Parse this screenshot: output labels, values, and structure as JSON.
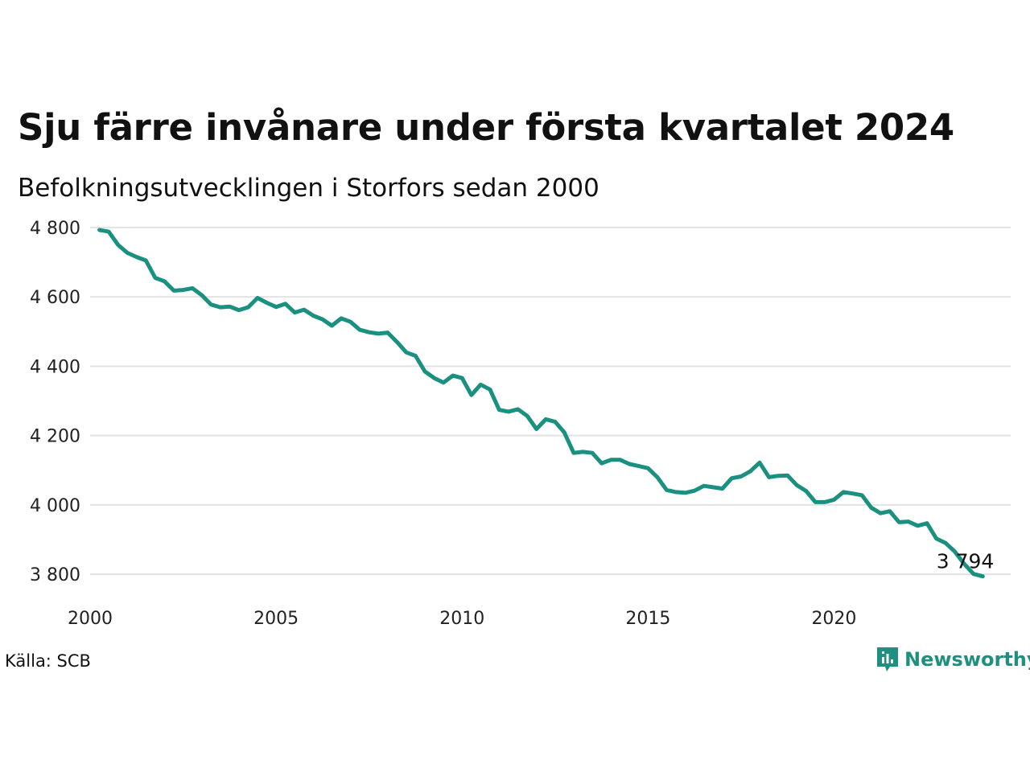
{
  "title": "Sju färre invånare under första kvartalet 2024",
  "subtitle": "Befolkningsutvecklingen i Storfors sedan 2000",
  "source": "Källa: SCB",
  "brand": {
    "name": "Newsworthy",
    "icon": "newsworthy-logo-icon",
    "color": "#1f8f7f"
  },
  "chart_data": {
    "type": "line",
    "title": "Sju färre invånare under första kvartalet 2024",
    "subtitle": "Befolkningsutvecklingen i Storfors sedan 2000",
    "xlabel": "",
    "ylabel": "",
    "xlim": [
      2000,
      2024.75
    ],
    "ylim": [
      3740,
      4830
    ],
    "grid": true,
    "line_color": "#1a9080",
    "x_ticks": [
      2000,
      2005,
      2010,
      2015,
      2020
    ],
    "x_tick_labels": [
      "2000",
      "2005",
      "2010",
      "2015",
      "2020"
    ],
    "y_ticks": [
      3800,
      4000,
      4200,
      4400,
      4600,
      4800
    ],
    "y_tick_labels": [
      "3 800",
      "4 000",
      "4 200",
      "4 400",
      "4 600",
      "4 800"
    ],
    "end_label": "3 794",
    "x": [
      2000.25,
      2000.5,
      2000.75,
      2001,
      2001.25,
      2001.5,
      2001.75,
      2002,
      2002.25,
      2002.5,
      2002.75,
      2003,
      2003.25,
      2003.5,
      2003.75,
      2004,
      2004.25,
      2004.5,
      2004.75,
      2005,
      2005.25,
      2005.5,
      2005.75,
      2006,
      2006.25,
      2006.5,
      2006.75,
      2007,
      2007.25,
      2007.5,
      2007.75,
      2008,
      2008.25,
      2008.5,
      2008.75,
      2009,
      2009.25,
      2009.5,
      2009.75,
      2010,
      2010.25,
      2010.5,
      2010.75,
      2011,
      2011.25,
      2011.5,
      2011.75,
      2012,
      2012.25,
      2012.5,
      2012.75,
      2013,
      2013.25,
      2013.5,
      2013.75,
      2014,
      2014.25,
      2014.5,
      2014.75,
      2015,
      2015.25,
      2015.5,
      2015.75,
      2016,
      2016.25,
      2016.5,
      2016.75,
      2017,
      2017.25,
      2017.5,
      2017.75,
      2018,
      2018.25,
      2018.5,
      2018.75,
      2019,
      2019.25,
      2019.5,
      2019.75,
      2020,
      2020.25,
      2020.5,
      2020.75,
      2021,
      2021.25,
      2021.5,
      2021.75,
      2022,
      2022.25,
      2022.5,
      2022.75,
      2023,
      2023.25,
      2023.5,
      2023.75,
      2024
    ],
    "series": [
      {
        "values": [
          4793,
          4788,
          4750,
          4727,
          4715,
          4705,
          4655,
          4645,
          4618,
          4620,
          4625,
          4605,
          4578,
          4570,
          4572,
          4562,
          4570,
          4597,
          4583,
          4571,
          4580,
          4555,
          4563,
          4546,
          4535,
          4517,
          4538,
          4528,
          4505,
          4498,
          4494,
          4497,
          4470,
          4440,
          4430,
          4385,
          4366,
          4353,
          4373,
          4366,
          4317,
          4347,
          4333,
          4274,
          4269,
          4276,
          4257,
          4219,
          4247,
          4240,
          4209,
          4150,
          4153,
          4150,
          4120,
          4130,
          4130,
          4118,
          4112,
          4106,
          4080,
          4043,
          4037,
          4035,
          4041,
          4055,
          4051,
          4047,
          4077,
          4082,
          4097,
          4122,
          4080,
          4084,
          4085,
          4057,
          4040,
          4008,
          4008,
          4015,
          4037,
          4033,
          4028,
          3992,
          3976,
          3982,
          3950,
          3952,
          3940,
          3947,
          3903,
          3890,
          3865,
          3830,
          3801,
          3794
        ]
      }
    ]
  }
}
